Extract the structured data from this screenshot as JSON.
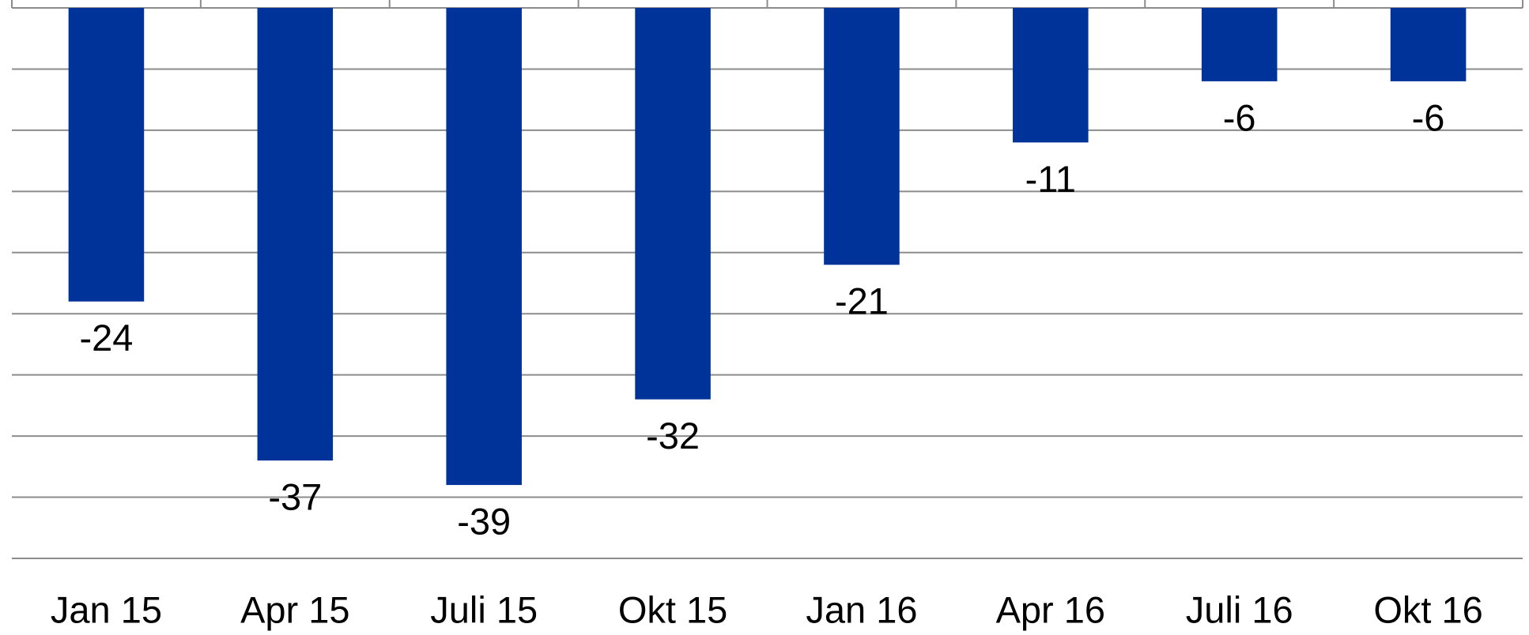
{
  "chart_data": {
    "type": "bar",
    "categories": [
      "Jan 15",
      "Apr 15",
      "Juli 15",
      "Okt 15",
      "Jan 16",
      "Apr 16",
      "Juli 16",
      "Okt 16"
    ],
    "values": [
      -24,
      -37,
      -39,
      -32,
      -21,
      -11,
      -6,
      -6
    ],
    "color": "#003399",
    "ylim": [
      -45,
      0
    ],
    "yticks": [
      -45,
      -40,
      -35,
      -30,
      -25,
      -20,
      -15,
      -10,
      -5,
      0
    ],
    "grid": true
  }
}
